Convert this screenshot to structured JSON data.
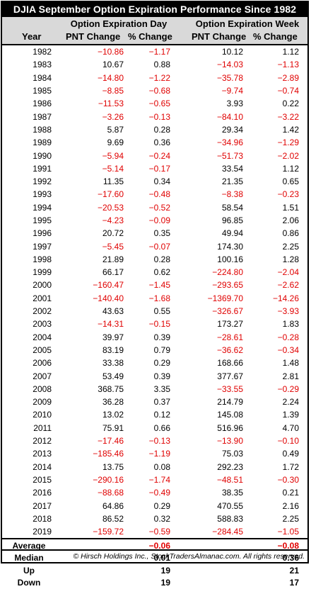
{
  "title": "DJIA September Option Expiration Performance Since 1982",
  "header": {
    "group_day": "Option Expiration Day",
    "group_week": "Option Expiration Week",
    "col_year": "Year",
    "col_day_pnt": "PNT Change",
    "col_day_pct": "% Change",
    "col_week_pnt": "PNT Change",
    "col_week_pct": "% Change"
  },
  "rows": [
    [
      "1982",
      "−10.86",
      "−1.17",
      "10.12",
      "1.12"
    ],
    [
      "1983",
      "10.67",
      "0.88",
      "−14.03",
      "−1.13"
    ],
    [
      "1984",
      "−14.80",
      "−1.22",
      "−35.78",
      "−2.89"
    ],
    [
      "1985",
      "−8.85",
      "−0.68",
      "−9.74",
      "−0.74"
    ],
    [
      "1986",
      "−11.53",
      "−0.65",
      "3.93",
      "0.22"
    ],
    [
      "1987",
      "−3.26",
      "−0.13",
      "−84.10",
      "−3.22"
    ],
    [
      "1988",
      "5.87",
      "0.28",
      "29.34",
      "1.42"
    ],
    [
      "1989",
      "9.69",
      "0.36",
      "−34.96",
      "−1.29"
    ],
    [
      "1990",
      "−5.94",
      "−0.24",
      "−51.73",
      "−2.02"
    ],
    [
      "1991",
      "−5.14",
      "−0.17",
      "33.54",
      "1.12"
    ],
    [
      "1992",
      "11.35",
      "0.34",
      "21.35",
      "0.65"
    ],
    [
      "1993",
      "−17.60",
      "−0.48",
      "−8.38",
      "−0.23"
    ],
    [
      "1994",
      "−20.53",
      "−0.52",
      "58.54",
      "1.51"
    ],
    [
      "1995",
      "−4.23",
      "−0.09",
      "96.85",
      "2.06"
    ],
    [
      "1996",
      "20.72",
      "0.35",
      "49.94",
      "0.86"
    ],
    [
      "1997",
      "−5.45",
      "−0.07",
      "174.30",
      "2.25"
    ],
    [
      "1998",
      "21.89",
      "0.28",
      "100.16",
      "1.28"
    ],
    [
      "1999",
      "66.17",
      "0.62",
      "−224.80",
      "−2.04"
    ],
    [
      "2000",
      "−160.47",
      "−1.45",
      "−293.65",
      "−2.62"
    ],
    [
      "2001",
      "−140.40",
      "−1.68",
      "−1369.70",
      "−14.26"
    ],
    [
      "2002",
      "43.63",
      "0.55",
      "−326.67",
      "−3.93"
    ],
    [
      "2003",
      "−14.31",
      "−0.15",
      "173.27",
      "1.83"
    ],
    [
      "2004",
      "39.97",
      "0.39",
      "−28.61",
      "−0.28"
    ],
    [
      "2005",
      "83.19",
      "0.79",
      "−36.62",
      "−0.34"
    ],
    [
      "2006",
      "33.38",
      "0.29",
      "168.66",
      "1.48"
    ],
    [
      "2007",
      "53.49",
      "0.39",
      "377.67",
      "2.81"
    ],
    [
      "2008",
      "368.75",
      "3.35",
      "−33.55",
      "−0.29"
    ],
    [
      "2009",
      "36.28",
      "0.37",
      "214.79",
      "2.24"
    ],
    [
      "2010",
      "13.02",
      "0.12",
      "145.08",
      "1.39"
    ],
    [
      "2011",
      "75.91",
      "0.66",
      "516.96",
      "4.70"
    ],
    [
      "2012",
      "−17.46",
      "−0.13",
      "−13.90",
      "−0.10"
    ],
    [
      "2013",
      "−185.46",
      "−1.19",
      "75.03",
      "0.49"
    ],
    [
      "2014",
      "13.75",
      "0.08",
      "292.23",
      "1.72"
    ],
    [
      "2015",
      "−290.16",
      "−1.74",
      "−48.51",
      "−0.30"
    ],
    [
      "2016",
      "−88.68",
      "−0.49",
      "38.35",
      "0.21"
    ],
    [
      "2017",
      "64.86",
      "0.29",
      "470.55",
      "2.16"
    ],
    [
      "2018",
      "86.52",
      "0.32",
      "588.83",
      "2.25"
    ],
    [
      "2019",
      "−159.72",
      "−0.59",
      "−284.45",
      "−1.05"
    ]
  ],
  "summary": [
    {
      "label": "Average",
      "day": "−0.06",
      "week": "−0.08"
    },
    {
      "label": "Median",
      "day": "0.01",
      "week": "0.36"
    },
    {
      "label": "Up",
      "day": "19",
      "week": "21"
    },
    {
      "label": "Down",
      "day": "19",
      "week": "17"
    }
  ],
  "footer": "© Hirsch Holdings Inc., StockTradersAlmanac.com. All rights reserved."
}
